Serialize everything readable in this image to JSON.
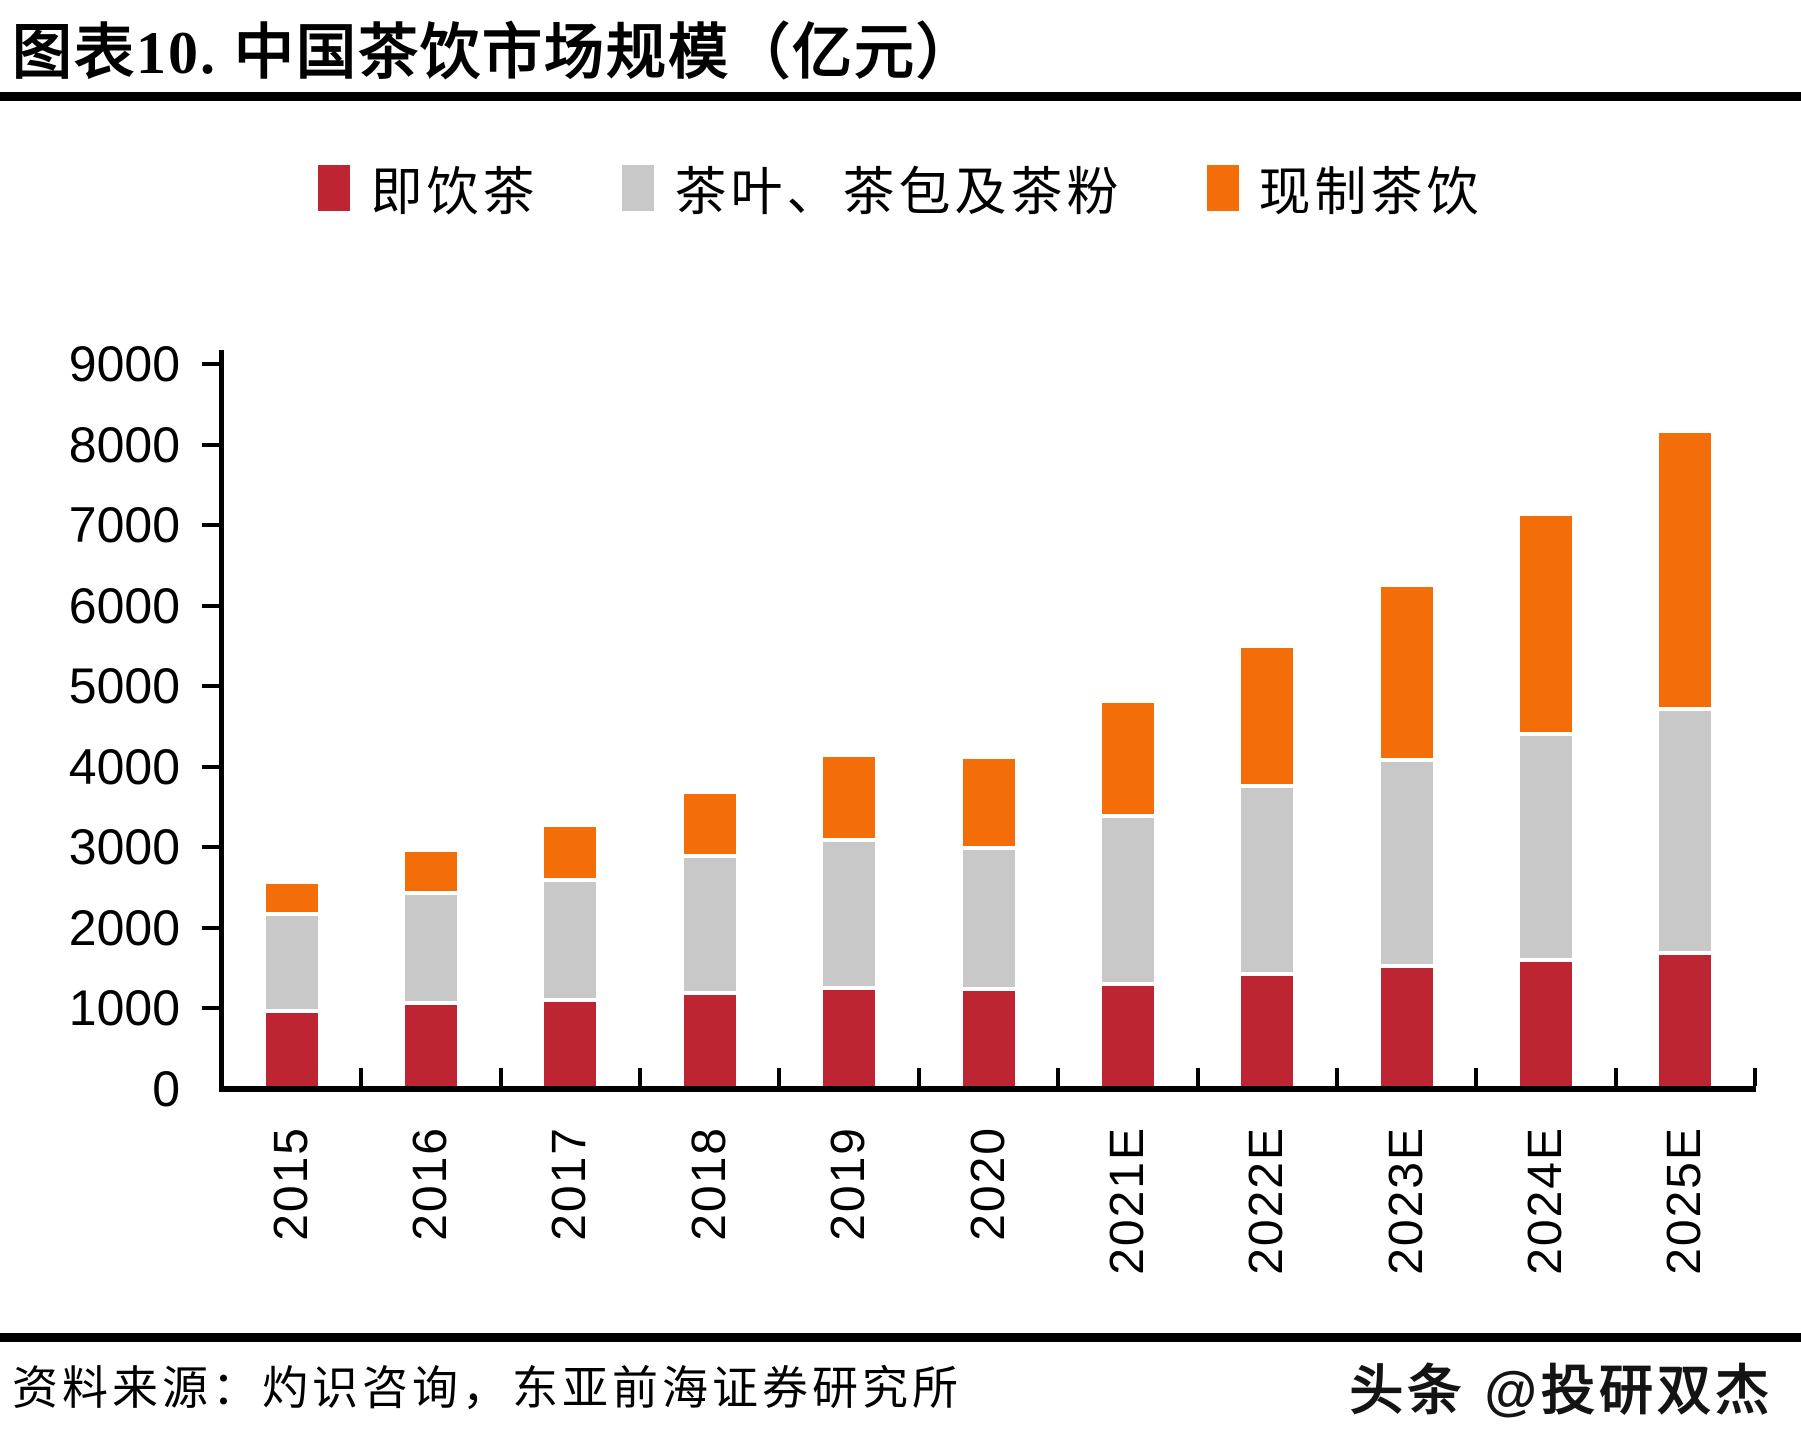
{
  "title": "图表10. 中国茶饮市场规模（亿元）",
  "chart_data": {
    "type": "bar",
    "stacked": true,
    "title": "中国茶饮市场规模",
    "unit": "亿元",
    "categories": [
      "2015",
      "2016",
      "2017",
      "2018",
      "2019",
      "2020",
      "2021E",
      "2022E",
      "2023E",
      "2024E",
      "2025E"
    ],
    "series": [
      {
        "name": "即饮茶",
        "color": "#BD2533",
        "values": [
          900,
          1000,
          1040,
          1125,
          1190,
          1180,
          1245,
          1370,
          1470,
          1540,
          1620
        ]
      },
      {
        "name": "茶叶、茶包及茶粉",
        "color": "#C8C8C8",
        "values": [
          1210,
          1370,
          1490,
          1710,
          1840,
          1755,
          2085,
          2330,
          2550,
          2810,
          3040
        ]
      },
      {
        "name": "现制茶饮",
        "color": "#F36D09",
        "values": [
          400,
          540,
          680,
          795,
          1060,
          1125,
          1425,
          1735,
          2180,
          2730,
          3450
        ]
      }
    ],
    "totals": [
      2510,
      2910,
      3210,
      3630,
      4090,
      4060,
      4755,
      5435,
      6200,
      7080,
      8110
    ],
    "ylim": [
      0,
      9000
    ],
    "ytick_interval": 1000,
    "ytick_labels": [
      "0",
      "1000",
      "2000",
      "3000",
      "4000",
      "5000",
      "6000",
      "7000",
      "8000",
      "9000"
    ],
    "legend_position": "top",
    "grid": false
  },
  "footer": {
    "source": "资料来源：灼识咨询，东亚前海证券研究所",
    "watermark": "头条 @投研双杰"
  }
}
